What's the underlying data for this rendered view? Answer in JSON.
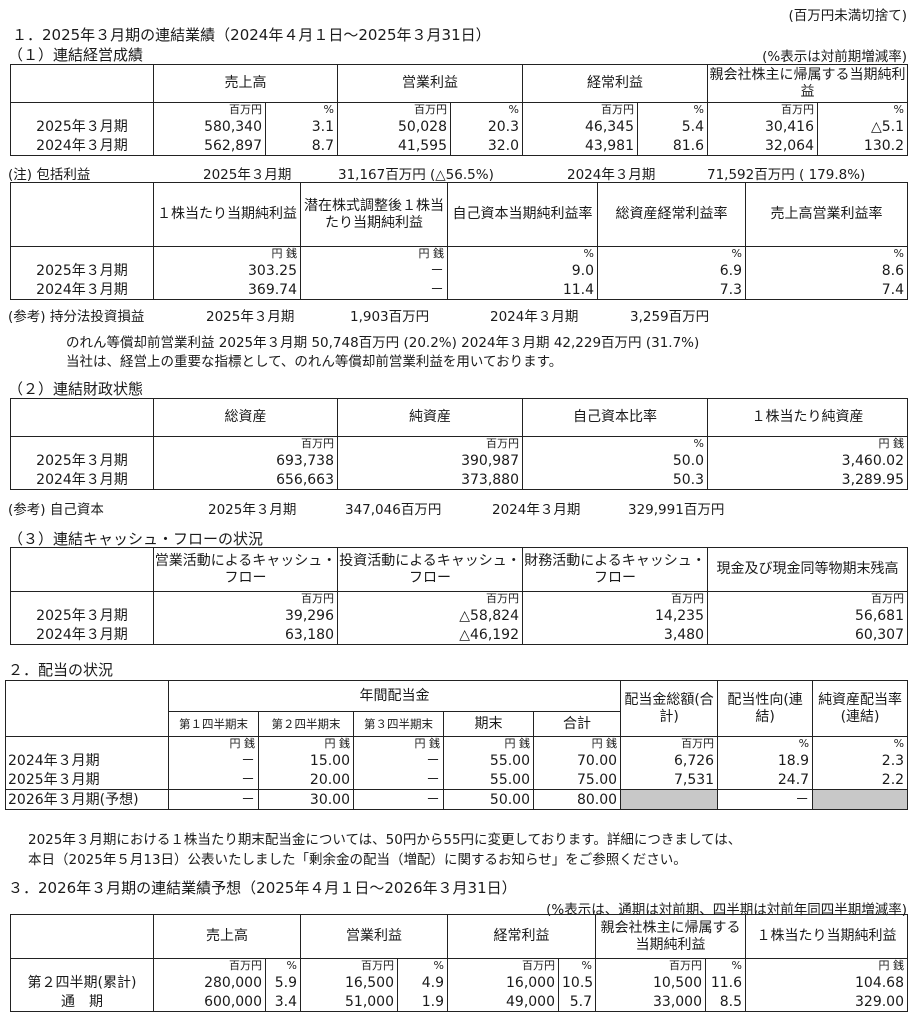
{
  "unit_note": "(百万円未満切捨て)",
  "s1": {
    "title": "１．2025年３月期の連結業績（2024年４月１日～2025年３月31日）",
    "results": {
      "title": "（１）連結経営成績",
      "note": "(%表示は対前期増減率)",
      "headers": [
        "売上高",
        "営業利益",
        "経常利益",
        "親会社株主に帰属する当期純利益"
      ],
      "rows": [
        {
          "label": "",
          "values": [
            "百万円",
            "%",
            "百万円",
            "%",
            "百万円",
            "%",
            "百万円",
            "%"
          ]
        },
        {
          "label": "2025年３月期",
          "values": [
            "580,340",
            "3.1",
            "50,028",
            "20.3",
            "46,345",
            "5.4",
            "30,416",
            "△5.1"
          ]
        },
        {
          "label": "2024年３月期",
          "values": [
            "562,897",
            "8.7",
            "41,595",
            "32.0",
            "43,981",
            "81.6",
            "32,064",
            "130.2"
          ]
        }
      ]
    },
    "comprehensive": {
      "label": "(注) 包括利益",
      "p1": "2025年３月期",
      "v1": "31,167百万円 (△56.5%)",
      "p2": "2024年３月期",
      "v2": "71,592百万円 ( 179.8%)"
    },
    "per_share": {
      "headers": [
        "１株当たり当期純利益",
        "潜在株式調整後１株当たり当期純利益",
        "自己資本当期純利益率",
        "総資産経常利益率",
        "売上高営業利益率"
      ],
      "rows": [
        {
          "label": "",
          "values": [
            "円 銭",
            "円 銭",
            "%",
            "%",
            "%"
          ]
        },
        {
          "label": "2025年３月期",
          "values": [
            "303.25",
            "－",
            "9.0",
            "6.9",
            "8.6"
          ]
        },
        {
          "label": "2024年３月期",
          "values": [
            "369.74",
            "－",
            "11.4",
            "7.3",
            "7.4"
          ]
        }
      ]
    },
    "ref_equity": {
      "label": "(参考) 持分法投資損益",
      "p1": "2025年３月期",
      "v1": "1,903百万円",
      "p2": "2024年３月期",
      "v2": "3,259百万円"
    },
    "goodwill_line": "のれん等償却前営業利益 2025年３月期 50,748百万円 (20.2%) 2024年３月期 42,229百万円 (31.7%)",
    "goodwill_note": "当社は、経営上の重要な指標として、のれん等償却前営業利益を用いております。",
    "financial": {
      "title": "（２）連結財政状態",
      "headers": [
        "総資産",
        "純資産",
        "自己資本比率",
        "１株当たり純資産"
      ],
      "rows": [
        {
          "label": "",
          "values": [
            "百万円",
            "百万円",
            "%",
            "円 銭"
          ]
        },
        {
          "label": "2025年３月期",
          "values": [
            "693,738",
            "390,987",
            "50.0",
            "3,460.02"
          ]
        },
        {
          "label": "2024年３月期",
          "values": [
            "656,663",
            "373,880",
            "50.3",
            "3,289.95"
          ]
        }
      ]
    },
    "ref_capital": {
      "label": "(参考) 自己資本",
      "p1": "2025年３月期",
      "v1": "347,046百万円",
      "p2": "2024年３月期",
      "v2": "329,991百万円"
    },
    "cashflow": {
      "title": "（３）連結キャッシュ・フローの状況",
      "headers": [
        "営業活動によるキャッシュ・フロー",
        "投資活動によるキャッシュ・フロー",
        "財務活動によるキャッシュ・フロー",
        "現金及び現金同等物期末残高"
      ],
      "rows": [
        {
          "label": "",
          "values": [
            "百万円",
            "百万円",
            "百万円",
            "百万円"
          ]
        },
        {
          "label": "2025年３月期",
          "values": [
            "39,296",
            "△58,824",
            "14,235",
            "56,681"
          ]
        },
        {
          "label": "2024年３月期",
          "values": [
            "63,180",
            "△46,192",
            "3,480",
            "60,307"
          ]
        }
      ]
    }
  },
  "s2": {
    "title": "２．配当の状況",
    "header_annual": "年間配当金",
    "sub_headers": [
      "第１四半期末",
      "第２四半期末",
      "第３四半期末",
      "期末",
      "合計"
    ],
    "header_total": "配当金総額(合計)",
    "header_payout": "配当性向(連結)",
    "header_ratio": "純資産配当率(連結)",
    "rows": [
      {
        "label": "",
        "values": [
          "円 銭",
          "円 銭",
          "円 銭",
          "円 銭",
          "円 銭",
          "百万円",
          "%",
          "%"
        ]
      },
      {
        "label": "2024年３月期",
        "values": [
          "－",
          "15.00",
          "－",
          "55.00",
          "70.00",
          "6,726",
          "18.9",
          "2.3"
        ]
      },
      {
        "label": "2025年３月期",
        "values": [
          "－",
          "20.00",
          "－",
          "55.00",
          "75.00",
          "7,531",
          "24.7",
          "2.2"
        ]
      },
      {
        "label": "2026年３月期(予想)",
        "values": [
          "－",
          "30.00",
          "－",
          "50.00",
          "80.00",
          null,
          "－",
          null
        ]
      }
    ],
    "note1": "2025年３月期における１株当たり期末配当金については、50円から55円に変更しております。詳細につきましては、",
    "note2": "本日（2025年５月13日）公表いたしました「剰余金の配当（増配）に関するお知らせ」をご参照ください。"
  },
  "s3": {
    "title": "３．2026年３月期の連結業績予想（2025年４月１日～2026年３月31日）",
    "note": "(%表示は、通期は対前期、四半期は対前年同四半期増減率)",
    "headers": [
      "売上高",
      "営業利益",
      "経常利益",
      "親会社株主に帰属する当期純利益",
      "１株当たり当期純利益"
    ],
    "rows": [
      {
        "label": "",
        "values": [
          "百万円",
          "%",
          "百万円",
          "%",
          "百万円",
          "%",
          "百万円",
          "%",
          "円 銭"
        ]
      },
      {
        "label": "第２四半期(累計)",
        "values": [
          "280,000",
          "5.9",
          "16,500",
          "4.9",
          "16,000",
          "10.5",
          "10,500",
          "11.6",
          "104.68"
        ]
      },
      {
        "label": "通　期",
        "values": [
          "600,000",
          "3.4",
          "51,000",
          "1.9",
          "49,000",
          "5.7",
          "33,000",
          "8.5",
          "329.00"
        ]
      }
    ]
  }
}
